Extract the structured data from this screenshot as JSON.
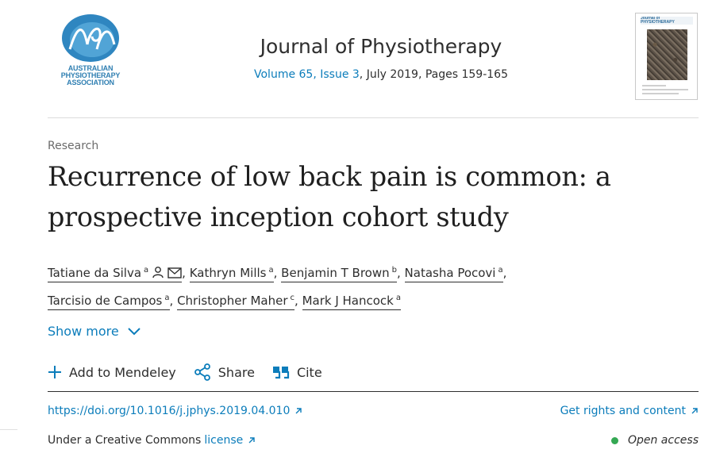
{
  "header": {
    "logo_text": "AUSTRALIAN PHYSIOTHERAPY ASSOCIATION",
    "logo_monogram": "APA",
    "journal_title": "Journal of Physiotherapy",
    "volume_issue": "Volume 65, Issue 3",
    "date_pages": ", July 2019, Pages 159-165",
    "cover_title": "Journal of PHYSIOTHERAPY"
  },
  "article": {
    "category": "Research",
    "title": "Recurrence of low back pain is common: a prospective inception cohort study",
    "authors": [
      {
        "name": "Tatiane da Silva",
        "affil": "a",
        "sep": ""
      },
      {
        "name": "Kathryn Mills",
        "affil": "a",
        "sep": ","
      },
      {
        "name": "Benjamin T Brown",
        "affil": "b",
        "sep": ","
      },
      {
        "name": "Natasha Pocovi",
        "affil": "a",
        "sep": ","
      },
      {
        "name": "Tarcisio de Campos",
        "affil": "a",
        "sep": ","
      },
      {
        "name": "Christopher Maher",
        "affil": "c",
        "sep": ","
      },
      {
        "name": "Mark J Hancock",
        "affil": "a",
        "sep": ""
      }
    ],
    "show_more": "Show more"
  },
  "toolbar": {
    "mendeley": "Add to Mendeley",
    "share": "Share",
    "cite": "Cite"
  },
  "footer": {
    "doi": "https://doi.org/10.1016/j.jphys.2019.04.010",
    "rights": "Get rights and content",
    "license_prefix": "Under a Creative Commons",
    "license_link": "license",
    "open_access": "Open access"
  },
  "colors": {
    "link": "#0c7dbb",
    "text": "#2e2e2e",
    "open_access_dot": "#34a853"
  }
}
